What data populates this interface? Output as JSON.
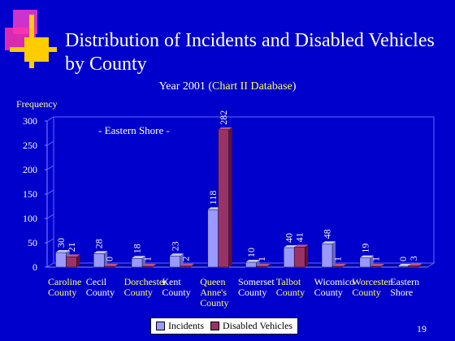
{
  "slide": {
    "title": "Distribution of Incidents and Disabled Vehicles by County",
    "subtitle_prefix": "Year 2001 (",
    "subtitle_highlight": "Chart II Database",
    "subtitle_suffix": ")",
    "page_number": "19"
  },
  "colors": {
    "background": "#0000cc",
    "incidents": "#9999ff",
    "disabled": "#993366",
    "highlight_text": "#ffff66",
    "category_label": "#ffff66"
  },
  "chart_data": {
    "type": "bar",
    "ylabel": "Frequency",
    "annotation": "- Eastern Shore -",
    "ylim": [
      0,
      300
    ],
    "yticks": [
      0,
      50,
      100,
      150,
      200,
      250,
      300
    ],
    "categories": [
      [
        "Caroline",
        "County"
      ],
      [
        "Cecil",
        "County"
      ],
      [
        "Dorchester",
        "County"
      ],
      [
        "Kent",
        "County"
      ],
      [
        "Queen",
        "Anne's",
        "County"
      ],
      [
        "Somerset",
        "County"
      ],
      [
        "Talbot",
        "County"
      ],
      [
        "Wicomico",
        "County"
      ],
      [
        "Worcester",
        "County"
      ],
      [
        "Eastern",
        "Shore"
      ]
    ],
    "category_highlight": [
      true,
      false,
      true,
      false,
      true,
      false,
      true,
      false,
      true,
      false
    ],
    "series": [
      {
        "name": "Incidents",
        "values": [
          30,
          28,
          18,
          23,
          118,
          10,
          40,
          48,
          19,
          0
        ]
      },
      {
        "name": "Disabled Vehicles",
        "values": [
          21,
          0,
          1,
          2,
          282,
          1,
          41,
          1,
          1,
          3
        ]
      }
    ],
    "legend_position": "bottom"
  }
}
